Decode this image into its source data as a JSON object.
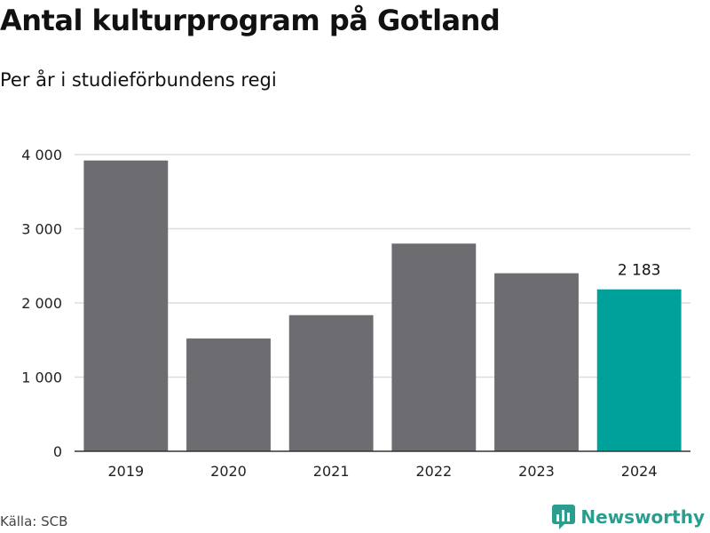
{
  "title": "Antal kulturprogram på Gotland",
  "subtitle": "Per år i studieförbundens regi",
  "source": "Källa: SCB",
  "brand": {
    "name": "Newsworthy",
    "icon": "newsworthy-logo-icon",
    "color": "#2a9d8f"
  },
  "chart_data": {
    "type": "bar",
    "categories": [
      "2019",
      "2020",
      "2021",
      "2022",
      "2023",
      "2024"
    ],
    "values": [
      3920,
      1520,
      1835,
      2800,
      2400,
      2183
    ],
    "ylim": [
      0,
      4000
    ],
    "yticks": [
      0,
      1000,
      2000,
      3000,
      4000
    ],
    "ytick_labels": [
      "0",
      "1 000",
      "2 000",
      "3 000",
      "4 000"
    ],
    "grid": true,
    "bar_color": "#6d6c71",
    "highlight_color": "#00a19a",
    "highlight_index": 5,
    "data_labels": [
      {
        "index": 5,
        "text": "2 183"
      }
    ]
  }
}
